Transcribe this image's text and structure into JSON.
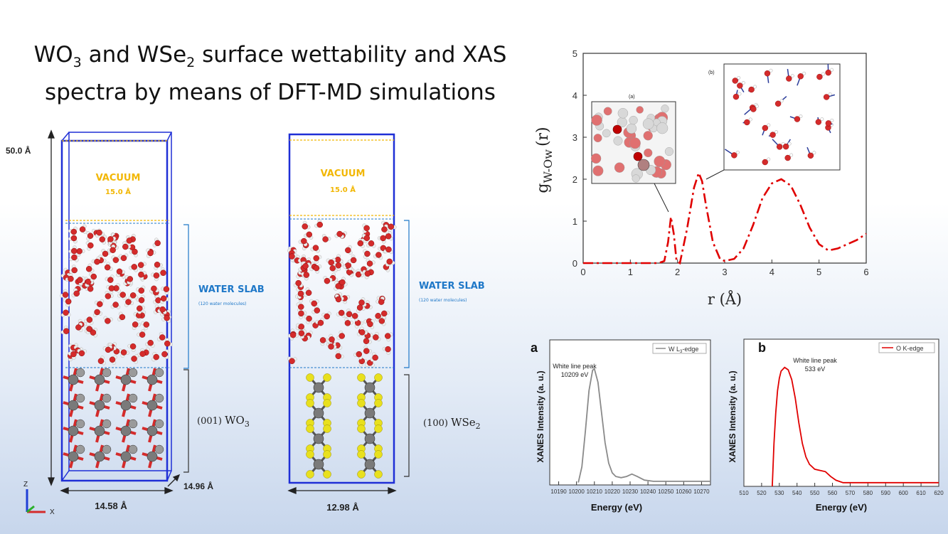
{
  "title": {
    "line1_a": "WO",
    "line1_sub1": "3",
    "line1_b": " and WSe",
    "line1_sub2": "2",
    "line1_c": " surface wettability and XAS",
    "line2": "spectra by means of DFT-MD simulations"
  },
  "left_model": {
    "height_label": "50.0 Å",
    "vacuum_label": "VACUUM",
    "vacuum_size": "15.0 Å",
    "water_label": "WATER SLAB",
    "water_sub": "(120 water molecules)",
    "slab_prefix": "(001) ",
    "slab_formula": "WO",
    "slab_sub": "3",
    "width_label": "14.58 Å",
    "depth_label": "14.96 Å",
    "axis_z": "Z",
    "axis_x": "X"
  },
  "right_model": {
    "vacuum_label": "VACUUM",
    "vacuum_size": "15.0 Å",
    "water_label": "WATER SLAB",
    "water_sub": "(120 water molecules)",
    "slab_prefix": "(100) ",
    "slab_formula": "WSe",
    "slab_sub": "2",
    "width_label": "12.98 Å"
  },
  "colors": {
    "cell": "#1f2fd6",
    "vacuum_text": "#f2b705",
    "water_text": "#1f78c8",
    "oxygen": "#d42b2b",
    "hydrogen": "#eeeeee",
    "tungsten": "#7a7a7a",
    "selenium": "#e8e01e",
    "rdf_line": "#e00000",
    "xanes_w": "#8a8a8a",
    "xanes_o": "#e00000"
  },
  "chart_data": [
    {
      "type": "line",
      "ylabel_main": "g",
      "ylabel_sub": "W-Ow",
      "ylabel_tail": "(r)",
      "xlabel": "r (Å)",
      "xlim": [
        0,
        6
      ],
      "ylim": [
        0,
        5
      ],
      "x_ticks": [
        "0",
        "1",
        "2",
        "3",
        "4",
        "5",
        "6"
      ],
      "y_ticks": [
        "0",
        "1",
        "2",
        "3",
        "4",
        "5"
      ],
      "series": [
        {
          "x": [
            0,
            1.0,
            1.6,
            1.72,
            1.8,
            1.86,
            1.92,
            1.98,
            2.05,
            2.2,
            2.35,
            2.45,
            2.52,
            2.6,
            2.75,
            2.9,
            3.0,
            3.2,
            3.4,
            3.6,
            3.8,
            4.0,
            4.2,
            4.4,
            4.6,
            4.8,
            5.0,
            5.2,
            5.4,
            5.6,
            5.8,
            6.0
          ],
          "y": [
            0,
            0,
            0,
            0.05,
            0.5,
            1.1,
            0.7,
            0.05,
            0,
            0.8,
            1.8,
            2.15,
            1.95,
            1.4,
            0.5,
            0.1,
            0.05,
            0.1,
            0.35,
            0.9,
            1.55,
            1.9,
            2.0,
            1.85,
            1.4,
            0.85,
            0.45,
            0.3,
            0.35,
            0.45,
            0.55,
            0.7
          ]
        }
      ],
      "insets": [
        {
          "label": "(a)"
        },
        {
          "label": "(b)"
        }
      ]
    },
    {
      "type": "line",
      "panel_label": "a",
      "xlabel": "Energy (eV)",
      "ylabel": "XANES Intensity (a. u.)",
      "xlim": [
        10185,
        10275
      ],
      "x_ticks": [
        "10190",
        "10200",
        "10210",
        "10220",
        "10230",
        "10240",
        "10250",
        "10260",
        "10270"
      ],
      "legend_main": "W L",
      "legend_sub": "3",
      "legend_tail": "-edge",
      "annotation_1": "White line peak",
      "annotation_2": "10209 eV",
      "series": [
        {
          "name": "W L3-edge",
          "x": [
            10201,
            10203,
            10205,
            10207,
            10209,
            10210,
            10212,
            10214,
            10216,
            10218,
            10220,
            10222,
            10225,
            10228,
            10231,
            10234,
            10238,
            10243,
            10250,
            10260,
            10275
          ],
          "y": [
            0.02,
            0.15,
            0.45,
            0.78,
            0.95,
            0.96,
            0.85,
            0.6,
            0.35,
            0.18,
            0.1,
            0.07,
            0.06,
            0.07,
            0.09,
            0.07,
            0.04,
            0.03,
            0.03,
            0.03,
            0.03
          ]
        }
      ]
    },
    {
      "type": "line",
      "panel_label": "b",
      "xlabel": "Energy (eV)",
      "ylabel": "XANES Intensity (a. u.)",
      "xlim": [
        510,
        620
      ],
      "x_ticks": [
        "510",
        "520",
        "530",
        "540",
        "550",
        "560",
        "570",
        "580",
        "590",
        "600",
        "610",
        "620"
      ],
      "legend_main": "O K-edge",
      "annotation_1": "White line peak",
      "annotation_2": "533 eV",
      "series": [
        {
          "name": "O K-edge",
          "x": [
            526,
            527,
            528,
            529,
            530,
            531,
            533,
            535,
            537,
            539,
            541,
            543,
            545,
            547,
            550,
            553,
            556,
            559,
            562,
            566,
            570,
            580,
            600,
            620
          ],
          "y": [
            0.0,
            0.35,
            0.6,
            0.78,
            0.88,
            0.94,
            0.97,
            0.95,
            0.87,
            0.72,
            0.52,
            0.35,
            0.24,
            0.18,
            0.14,
            0.13,
            0.12,
            0.08,
            0.05,
            0.03,
            0.03,
            0.03,
            0.03,
            0.03
          ]
        }
      ]
    }
  ]
}
